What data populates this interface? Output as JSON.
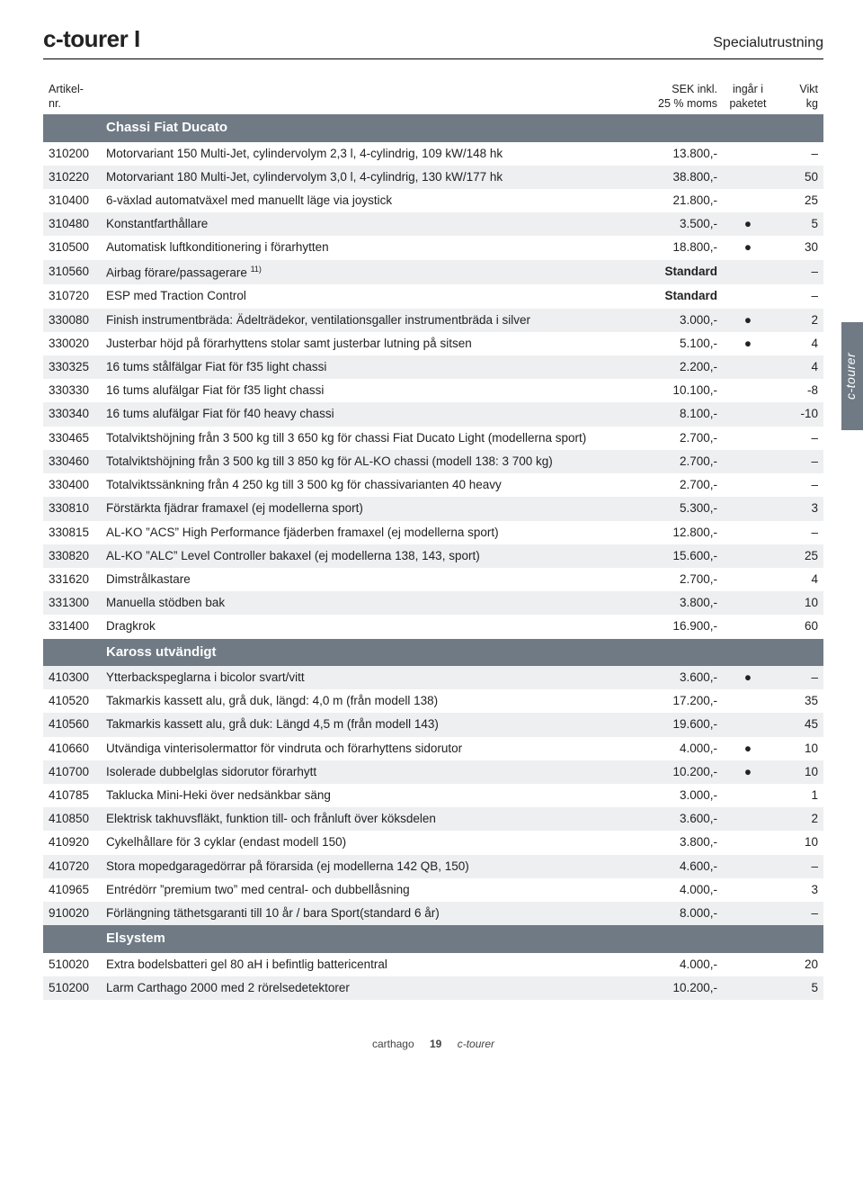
{
  "palette": {
    "section_bg": "#6f7a84",
    "row_alt_bg": "#edeff0"
  },
  "header": {
    "title_left": "c-tourer I",
    "title_right": "Specialutrustning"
  },
  "columns": {
    "id_label": "Artikel-\nnr.",
    "desc_label": "",
    "price_label": "SEK inkl.\n25 % moms",
    "pkg_label": "ingår i\npaketet",
    "weight_label": "Vikt\nkg"
  },
  "sidetab": "c-tourer",
  "footer": {
    "brand": "carthago",
    "page": "19",
    "model": "c-tourer"
  },
  "sections": [
    {
      "title": "Chassi Fiat Ducato",
      "rows": [
        {
          "id": "310200",
          "desc": "Motorvariant 150 Multi-Jet, cylindervolym 2,3 l, 4-cylindrig, 109 kW/148 hk",
          "price": "13.800,-",
          "pkg": "",
          "weight": "–"
        },
        {
          "id": "310220",
          "desc": "Motorvariant 180 Multi-Jet, cylindervolym 3,0 l, 4-cylindrig, 130 kW/177 hk",
          "price": "38.800,-",
          "pkg": "",
          "weight": "50"
        },
        {
          "id": "310400",
          "desc": "6-växlad automatväxel med manuellt läge via joystick",
          "price": "21.800,-",
          "pkg": "",
          "weight": "25"
        },
        {
          "id": "310480",
          "desc": "Konstantfarthållare",
          "price": "3.500,-",
          "pkg": "●",
          "weight": "5"
        },
        {
          "id": "310500",
          "desc": "Automatisk luftkonditionering i förarhytten",
          "price": "18.800,-",
          "pkg": "●",
          "weight": "30"
        },
        {
          "id": "310560",
          "desc": "Airbag förare/passagerare <sup>11)</sup>",
          "price": "Standard",
          "pkg": "",
          "weight": "–",
          "price_bold": true
        },
        {
          "id": "310720",
          "desc": "ESP med Traction Control",
          "price": "Standard",
          "pkg": "",
          "weight": "–",
          "price_bold": true
        },
        {
          "id": "330080",
          "desc": "Finish instrumentbräda: Ädelträdekor, ventilationsgaller instrumentbräda i silver",
          "price": "3.000,-",
          "pkg": "●",
          "weight": "2"
        },
        {
          "id": "330020",
          "desc": "Justerbar höjd på förarhyttens stolar samt justerbar lutning på sitsen",
          "price": "5.100,-",
          "pkg": "●",
          "weight": "4"
        },
        {
          "id": "330325",
          "desc": "16 tums stålfälgar Fiat för f35 light chassi",
          "price": "2.200,-",
          "pkg": "",
          "weight": "4"
        },
        {
          "id": "330330",
          "desc": "16 tums alufälgar Fiat för f35 light chassi",
          "price": "10.100,-",
          "pkg": "",
          "weight": "-8"
        },
        {
          "id": "330340",
          "desc": "16 tums alufälgar Fiat för f40 heavy chassi",
          "price": "8.100,-",
          "pkg": "",
          "weight": "-10"
        },
        {
          "id": "330465",
          "desc": "Totalviktshöjning från 3 500 kg till 3 650 kg för chassi Fiat Ducato Light (modellerna sport)",
          "price": "2.700,-",
          "pkg": "",
          "weight": "–"
        },
        {
          "id": "330460",
          "desc": "Totalviktshöjning från 3 500 kg till 3 850 kg för AL-KO chassi (modell 138: 3 700 kg)",
          "price": "2.700,-",
          "pkg": "",
          "weight": "–"
        },
        {
          "id": "330400",
          "desc": "Totalviktssänkning från 4 250 kg till 3 500 kg för chassivarianten 40 heavy",
          "price": "2.700,-",
          "pkg": "",
          "weight": "–"
        },
        {
          "id": "330810",
          "desc": "Förstärkta fjädrar framaxel (ej modellerna sport)",
          "price": "5.300,-",
          "pkg": "",
          "weight": "3"
        },
        {
          "id": "330815",
          "desc": "AL-KO ”ACS” High Performance fjäderben framaxel (ej modellerna sport)",
          "price": "12.800,-",
          "pkg": "",
          "weight": "–"
        },
        {
          "id": "330820",
          "desc": "AL-KO ”ALC” Level Controller bakaxel (ej modellerna 138, 143, sport)",
          "price": "15.600,-",
          "pkg": "",
          "weight": "25"
        },
        {
          "id": "331620",
          "desc": "Dimstrålkastare",
          "price": "2.700,-",
          "pkg": "",
          "weight": "4"
        },
        {
          "id": "331300",
          "desc": "Manuella stödben bak",
          "price": "3.800,-",
          "pkg": "",
          "weight": "10"
        },
        {
          "id": "331400",
          "desc": "Dragkrok",
          "price": "16.900,-",
          "pkg": "",
          "weight": "60"
        }
      ]
    },
    {
      "title": "Kaross utvändigt",
      "rows": [
        {
          "id": "410300",
          "desc": "Ytterbackspeglarna i bicolor svart/vitt",
          "price": "3.600,-",
          "pkg": "●",
          "weight": "–"
        },
        {
          "id": "410520",
          "desc": "Takmarkis kassett alu, grå duk, längd: 4,0 m (från modell 138)",
          "price": "17.200,-",
          "pkg": "",
          "weight": "35"
        },
        {
          "id": "410560",
          "desc": "Takmarkis kassett alu, grå duk: Längd 4,5 m (från modell 143)",
          "price": "19.600,-",
          "pkg": "",
          "weight": "45"
        },
        {
          "id": "410660",
          "desc": "Utvändiga vinterisolermattor för vindruta och förarhyttens sidorutor",
          "price": "4.000,-",
          "pkg": "●",
          "weight": "10"
        },
        {
          "id": "410700",
          "desc": "Isolerade dubbelglas sidorutor förarhytt",
          "price": "10.200,-",
          "pkg": "●",
          "weight": "10"
        },
        {
          "id": "410785",
          "desc": "Taklucka Mini-Heki över nedsänkbar säng",
          "price": "3.000,-",
          "pkg": "",
          "weight": "1"
        },
        {
          "id": "410850",
          "desc": "Elektrisk takhuvsfläkt, funktion till- och frånluft över köksdelen",
          "price": "3.600,-",
          "pkg": "",
          "weight": "2"
        },
        {
          "id": "410920",
          "desc": "Cykelhållare för 3 cyklar (endast modell 150)",
          "price": "3.800,-",
          "pkg": "",
          "weight": "10"
        },
        {
          "id": "410720",
          "desc": "Stora mopedgaragedörrar på förarsida (ej modellerna 142 QB, 150)",
          "price": "4.600,-",
          "pkg": "",
          "weight": "–"
        },
        {
          "id": "410965",
          "desc": "Entrédörr ”premium two” med central- och dubbellåsning",
          "price": "4.000,-",
          "pkg": "",
          "weight": "3"
        },
        {
          "id": "910020",
          "desc": "Förlängning täthetsgaranti till 10 år / bara Sport(standard 6 år)",
          "price": "8.000,-",
          "pkg": "",
          "weight": "–"
        }
      ]
    },
    {
      "title": "Elsystem",
      "rows": [
        {
          "id": "510020",
          "desc": "Extra bodelsbatteri gel 80 aH i befintlig battericentral",
          "price": "4.000,-",
          "pkg": "",
          "weight": "20"
        },
        {
          "id": "510200",
          "desc": "Larm Carthago 2000 med 2 rörelsedetektorer",
          "price": "10.200,-",
          "pkg": "",
          "weight": "5"
        }
      ]
    }
  ]
}
